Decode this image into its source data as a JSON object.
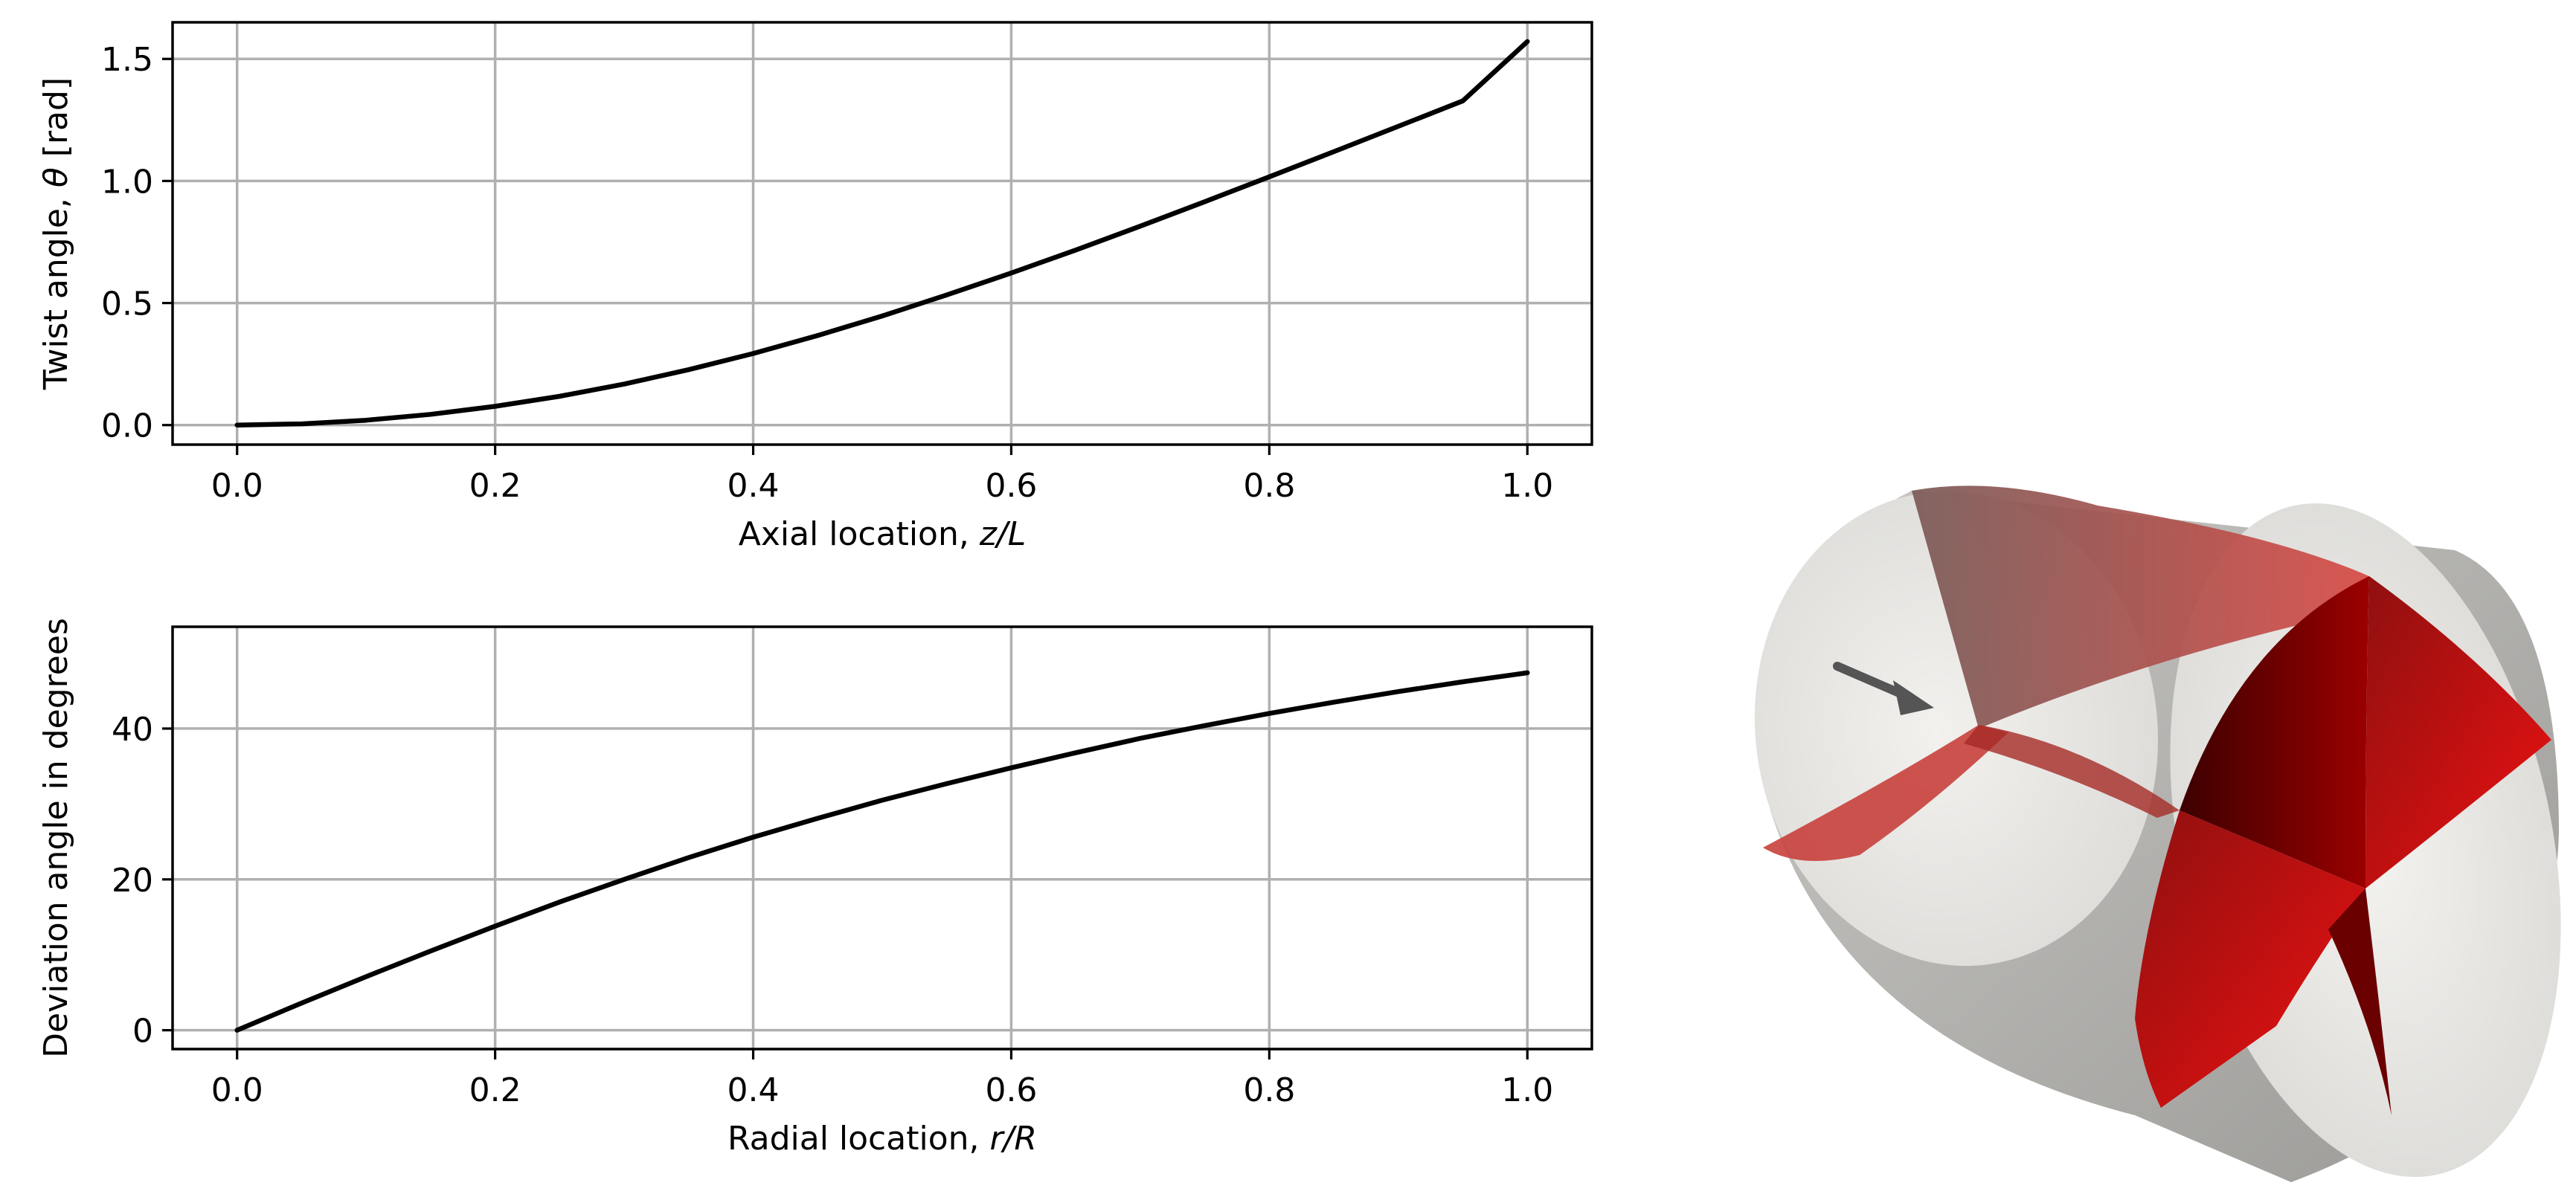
{
  "chart_data": [
    {
      "type": "line",
      "xlabel_prefix": "Axial location, ",
      "xlabel_var": "z/L",
      "ylabel_prefix": "Twist angle, ",
      "ylabel_var": "θ",
      "ylabel_suffix": " [rad]",
      "xlim": [
        -0.05,
        1.05
      ],
      "ylim": [
        -0.08,
        1.65
      ],
      "xticks": [
        0.0,
        0.2,
        0.4,
        0.6,
        0.8,
        1.0
      ],
      "xtick_labels": [
        "0.0",
        "0.2",
        "0.4",
        "0.6",
        "0.8",
        "1.0"
      ],
      "yticks": [
        0.0,
        0.5,
        1.0,
        1.5
      ],
      "ytick_labels": [
        "0.0",
        "0.5",
        "1.0",
        "1.5"
      ],
      "grid": true,
      "series": [
        {
          "color": "#000000",
          "x": [
            0.0,
            0.05,
            0.1,
            0.15,
            0.2,
            0.25,
            0.3,
            0.35,
            0.4,
            0.45,
            0.5,
            0.55,
            0.6,
            0.65,
            0.7,
            0.75,
            0.8,
            0.85,
            0.9,
            0.95,
            1.0
          ],
          "y": [
            0.0,
            0.005,
            0.02,
            0.044,
            0.077,
            0.118,
            0.168,
            0.227,
            0.293,
            0.367,
            0.447,
            0.533,
            0.623,
            0.717,
            0.815,
            0.915,
            1.017,
            1.12,
            1.224,
            1.328,
            1.571
          ]
        }
      ]
    },
    {
      "type": "line",
      "xlabel_prefix": "Radial location, ",
      "xlabel_var": "r/R",
      "ylabel_prefix": "Deviation angle in degrees",
      "ylabel_var": "",
      "ylabel_suffix": "",
      "xlim": [
        -0.05,
        1.05
      ],
      "ylim": [
        -2.5,
        53.5
      ],
      "xticks": [
        0.0,
        0.2,
        0.4,
        0.6,
        0.8,
        1.0
      ],
      "xtick_labels": [
        "0.0",
        "0.2",
        "0.4",
        "0.6",
        "0.8",
        "1.0"
      ],
      "yticks": [
        0,
        20,
        40
      ],
      "ytick_labels": [
        "0",
        "20",
        "40"
      ],
      "grid": true,
      "series": [
        {
          "color": "#000000",
          "x": [
            0.0,
            0.05,
            0.1,
            0.15,
            0.2,
            0.25,
            0.3,
            0.35,
            0.4,
            0.45,
            0.5,
            0.55,
            0.6,
            0.65,
            0.7,
            0.75,
            0.8,
            0.85,
            0.9,
            0.95,
            1.0
          ],
          "y": [
            0.0,
            3.6,
            7.1,
            10.5,
            13.8,
            17.0,
            20.0,
            22.9,
            25.6,
            28.1,
            30.5,
            32.7,
            34.8,
            36.8,
            38.7,
            40.4,
            42.0,
            43.5,
            44.9,
            46.2,
            47.4
          ]
        }
      ]
    }
  ],
  "render_3d": {
    "cylinder_color": "#d8d7d4",
    "blade_color": "#e01010",
    "arrow_color": "#555555"
  }
}
